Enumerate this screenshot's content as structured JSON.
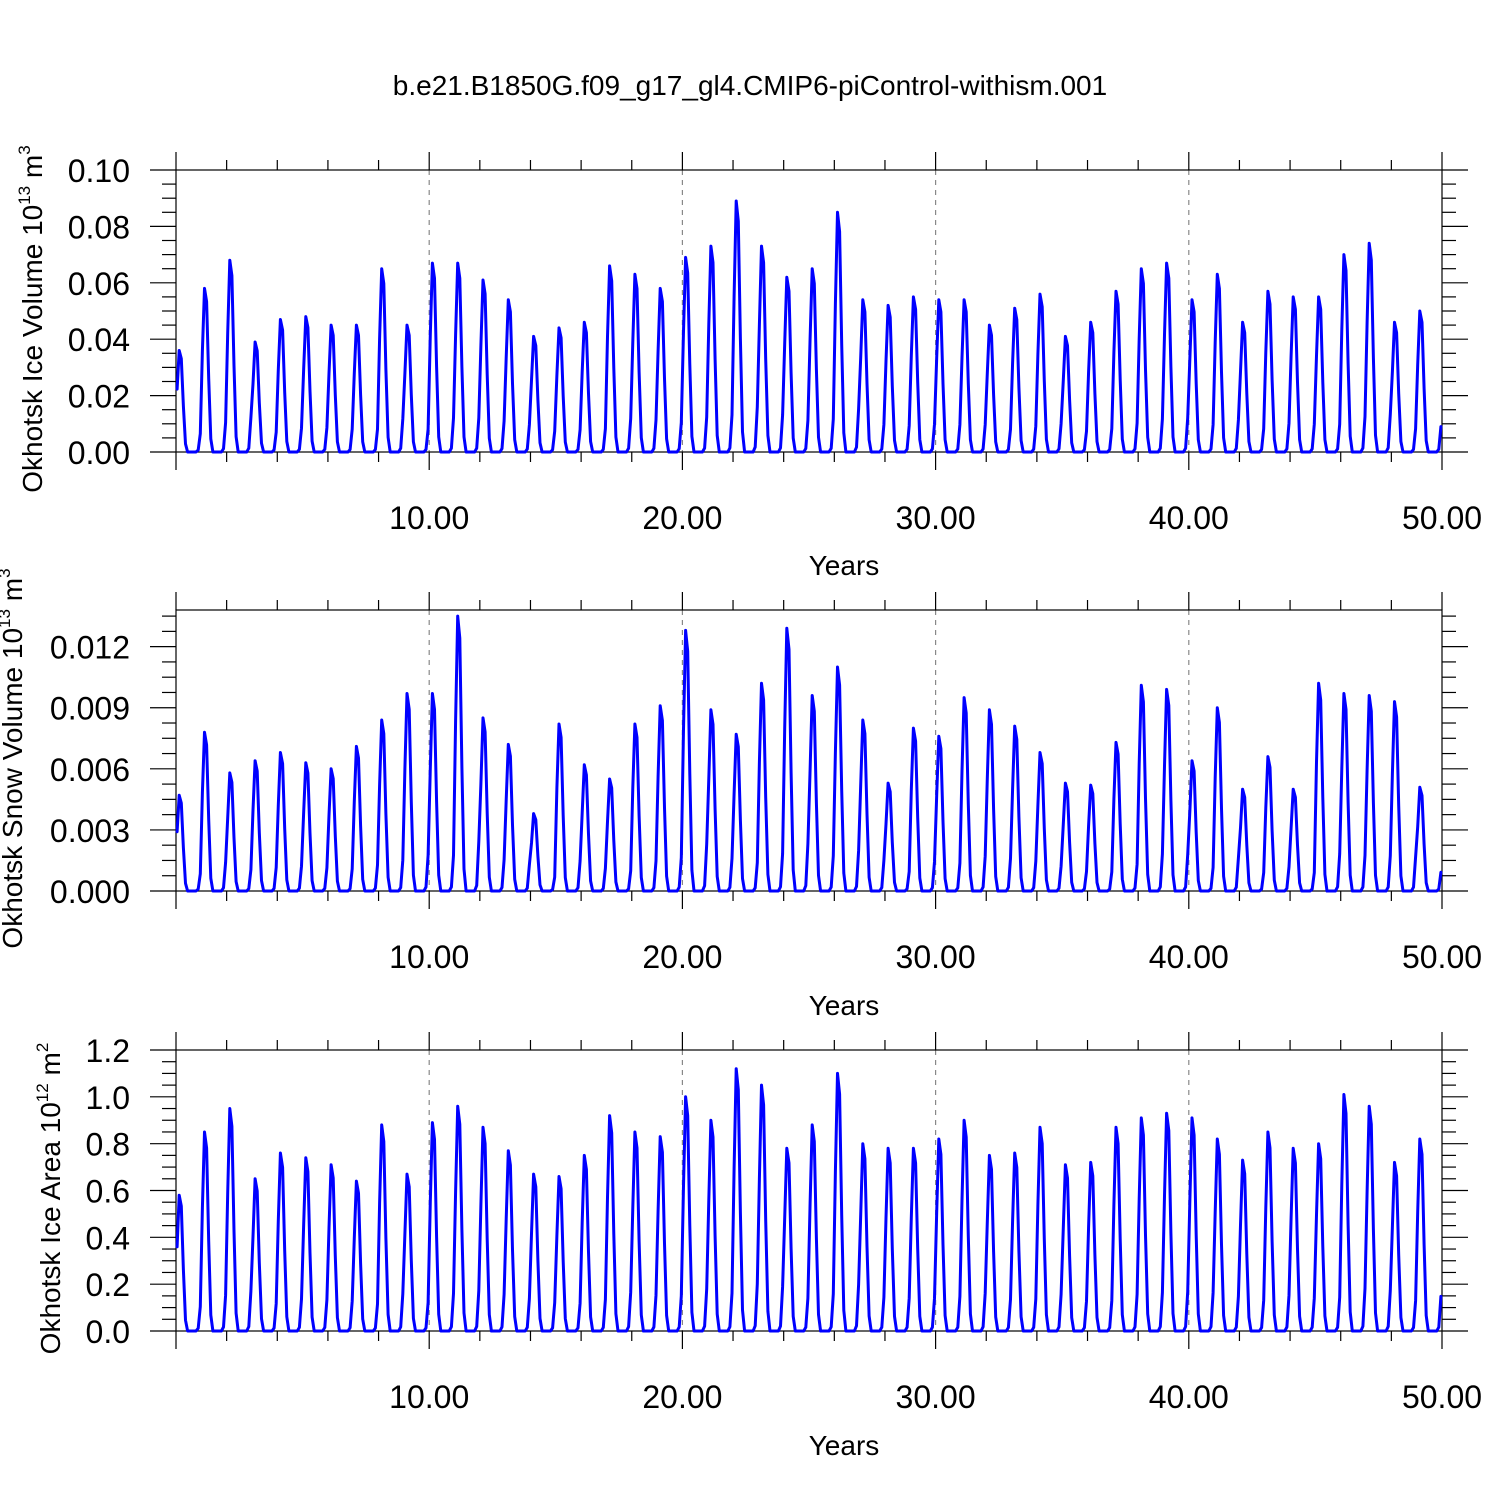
{
  "title": "b.e21.B1850G.f09_g17_gl4.CMIP6-piControl-withism.001",
  "colors": {
    "series": "#0000ff",
    "grid": "#888888",
    "axes": "#000000"
  },
  "chart_data": [
    {
      "type": "line",
      "panel": "ice-volume",
      "ylabel": {
        "main": "Okhotsk Ice Volume 10",
        "sup1": "13",
        "mid": " m",
        "sup2": "3"
      },
      "xlabel": "Years",
      "xlim": [
        0,
        50
      ],
      "ylim": [
        0,
        0.1
      ],
      "xticks": [
        "10.00",
        "20.00",
        "30.00",
        "40.00",
        "50.00"
      ],
      "yticks": [
        "0.00",
        "0.02",
        "0.04",
        "0.06",
        "0.08",
        "0.10"
      ],
      "grid": "dashed vertical at 10-year marks",
      "annual_peaks": [
        0.036,
        0.058,
        0.068,
        0.039,
        0.047,
        0.048,
        0.045,
        0.045,
        0.065,
        0.045,
        0.067,
        0.067,
        0.061,
        0.054,
        0.041,
        0.044,
        0.046,
        0.066,
        0.063,
        0.058,
        0.069,
        0.073,
        0.089,
        0.073,
        0.062,
        0.065,
        0.085,
        0.054,
        0.052,
        0.055,
        0.054,
        0.054,
        0.045,
        0.051,
        0.056,
        0.041,
        0.046,
        0.057,
        0.065,
        0.067,
        0.054,
        0.063,
        0.046,
        0.057,
        0.055,
        0.055,
        0.07,
        0.074,
        0.046,
        0.05
      ]
    },
    {
      "type": "line",
      "panel": "snow-volume",
      "ylabel": {
        "main": "Okhotsk Snow Volume 10",
        "sup1": "13",
        "mid": " m",
        "sup2": "3"
      },
      "xlabel": "Years",
      "xlim": [
        0,
        50
      ],
      "ylim": [
        0,
        0.0138
      ],
      "xticks": [
        "10.00",
        "20.00",
        "30.00",
        "40.00",
        "50.00"
      ],
      "yticks": [
        "0.000",
        "0.003",
        "0.006",
        "0.009",
        "0.012"
      ],
      "grid": "dashed vertical at 10-year marks",
      "annual_peaks": [
        0.0047,
        0.0078,
        0.0058,
        0.0064,
        0.0068,
        0.0063,
        0.006,
        0.0071,
        0.0084,
        0.0097,
        0.0097,
        0.0135,
        0.0085,
        0.0072,
        0.0038,
        0.0082,
        0.0062,
        0.0055,
        0.0082,
        0.0091,
        0.0128,
        0.0089,
        0.0077,
        0.0102,
        0.0129,
        0.0096,
        0.011,
        0.0084,
        0.0053,
        0.008,
        0.0076,
        0.0095,
        0.0089,
        0.0081,
        0.0068,
        0.0053,
        0.0052,
        0.0073,
        0.0101,
        0.0099,
        0.0064,
        0.009,
        0.005,
        0.0066,
        0.005,
        0.0102,
        0.0097,
        0.0096,
        0.0093,
        0.0051
      ]
    },
    {
      "type": "line",
      "panel": "ice-area",
      "ylabel": {
        "main": "Okhotsk Ice Area 10",
        "sup1": "12",
        "mid": " m",
        "sup2": "2"
      },
      "xlabel": "Years",
      "xlim": [
        0,
        50
      ],
      "ylim": [
        0,
        1.2
      ],
      "xticks": [
        "10.00",
        "20.00",
        "30.00",
        "40.00",
        "50.00"
      ],
      "yticks": [
        "0.0",
        "0.2",
        "0.4",
        "0.6",
        "0.8",
        "1.0",
        "1.2"
      ],
      "grid": "dashed vertical at 10-year marks",
      "annual_peaks": [
        0.58,
        0.85,
        0.95,
        0.65,
        0.76,
        0.74,
        0.71,
        0.64,
        0.88,
        0.67,
        0.89,
        0.96,
        0.87,
        0.77,
        0.67,
        0.66,
        0.75,
        0.92,
        0.85,
        0.83,
        1.0,
        0.9,
        1.12,
        1.05,
        0.78,
        0.88,
        1.1,
        0.8,
        0.78,
        0.78,
        0.82,
        0.9,
        0.75,
        0.76,
        0.87,
        0.71,
        0.72,
        0.87,
        0.91,
        0.93,
        0.91,
        0.82,
        0.73,
        0.85,
        0.78,
        0.8,
        1.01,
        0.96,
        0.72,
        0.82
      ]
    }
  ]
}
